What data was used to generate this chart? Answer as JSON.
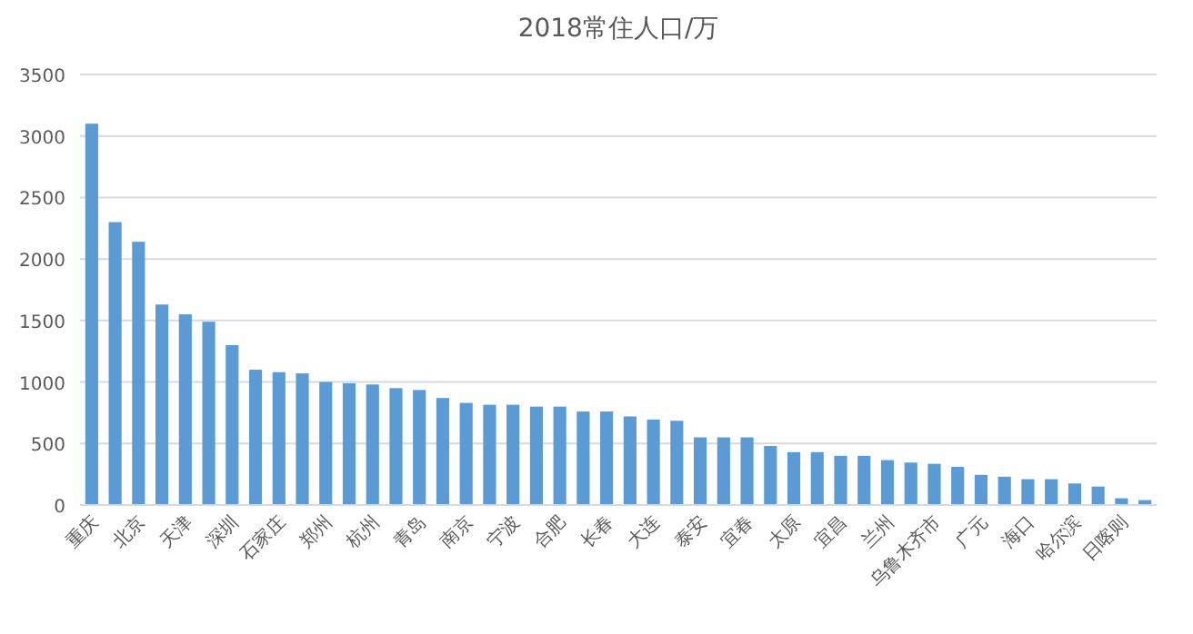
{
  "chart_data": {
    "type": "bar",
    "title": "2018常住人口/万",
    "categories": [
      "重庆",
      null,
      "北京",
      null,
      "天津",
      null,
      "深圳",
      null,
      "石家庄",
      null,
      "郑州",
      null,
      "杭州",
      null,
      "青岛",
      null,
      "南京",
      null,
      "宁波",
      null,
      "合肥",
      null,
      "长春",
      null,
      "大连",
      null,
      "泰安",
      null,
      "宜春",
      null,
      "太原",
      null,
      "宜昌",
      null,
      "兰州",
      null,
      "乌鲁木齐市",
      null,
      "广元",
      null,
      "海口",
      null,
      "哈尔滨",
      null,
      "日喀则",
      null
    ],
    "values": [
      3100,
      2300,
      2140,
      1630,
      1550,
      1490,
      1300,
      1100,
      1080,
      1070,
      1000,
      990,
      980,
      950,
      935,
      870,
      830,
      815,
      815,
      800,
      800,
      760,
      760,
      720,
      695,
      685,
      550,
      550,
      550,
      480,
      430,
      430,
      400,
      400,
      365,
      345,
      335,
      310,
      245,
      230,
      210,
      210,
      175,
      150,
      55,
      40
    ],
    "color": "#5b9bd5",
    "ylim": [
      0,
      3500
    ],
    "yticks": [
      0,
      500,
      1000,
      1500,
      2000,
      2500,
      3000,
      3500
    ],
    "grid": "y"
  }
}
